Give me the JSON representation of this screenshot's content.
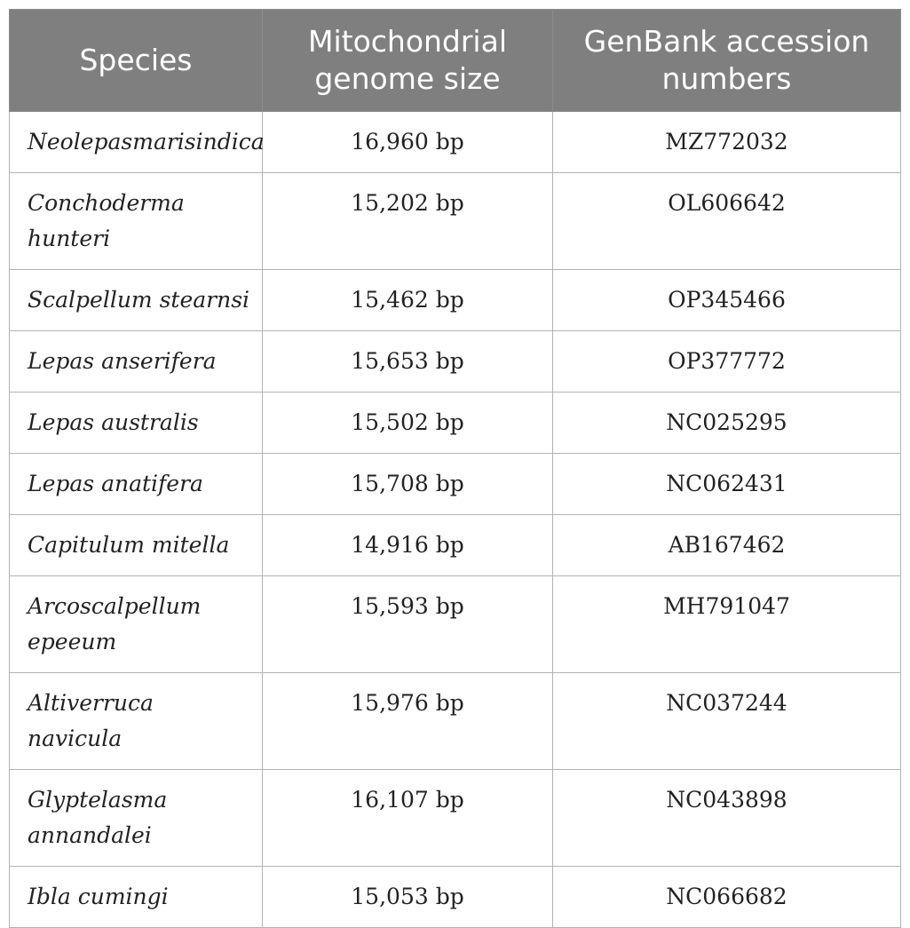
{
  "table": {
    "headers": {
      "species": "Species",
      "size": "Mitochondrial genome size",
      "accession": "GenBank accession numbers"
    },
    "rows": [
      {
        "species": "Neolepasmarisindica",
        "size": "16,960 bp",
        "accession": "MZ772032"
      },
      {
        "species": "Conchoderma hunteri",
        "size": "15,202 bp",
        "accession": "OL606642"
      },
      {
        "species": "Scalpellum stearnsi",
        "size": "15,462 bp",
        "accession": "OP345466"
      },
      {
        "species": "Lepas anserifera",
        "size": "15,653 bp",
        "accession": "OP377772"
      },
      {
        "species": "Lepas australis",
        "size": "15,502 bp",
        "accession": "NC025295"
      },
      {
        "species": "Lepas anatifera",
        "size": "15,708 bp",
        "accession": "NC062431"
      },
      {
        "species": "Capitulum mitella",
        "size": "14,916 bp",
        "accession": "AB167462"
      },
      {
        "species": "Arcoscalpellum epeeum",
        "size": "15,593 bp",
        "accession": "MH791047"
      },
      {
        "species": "Altiverruca navicula",
        "size": "15,976 bp",
        "accession": "NC037244"
      },
      {
        "species": "Glyptelasma annandalei",
        "size": "16,107 bp",
        "accession": "NC043898"
      },
      {
        "species": "Ibla cumingi",
        "size": "15,053 bp",
        "accession": "NC066682"
      }
    ]
  }
}
